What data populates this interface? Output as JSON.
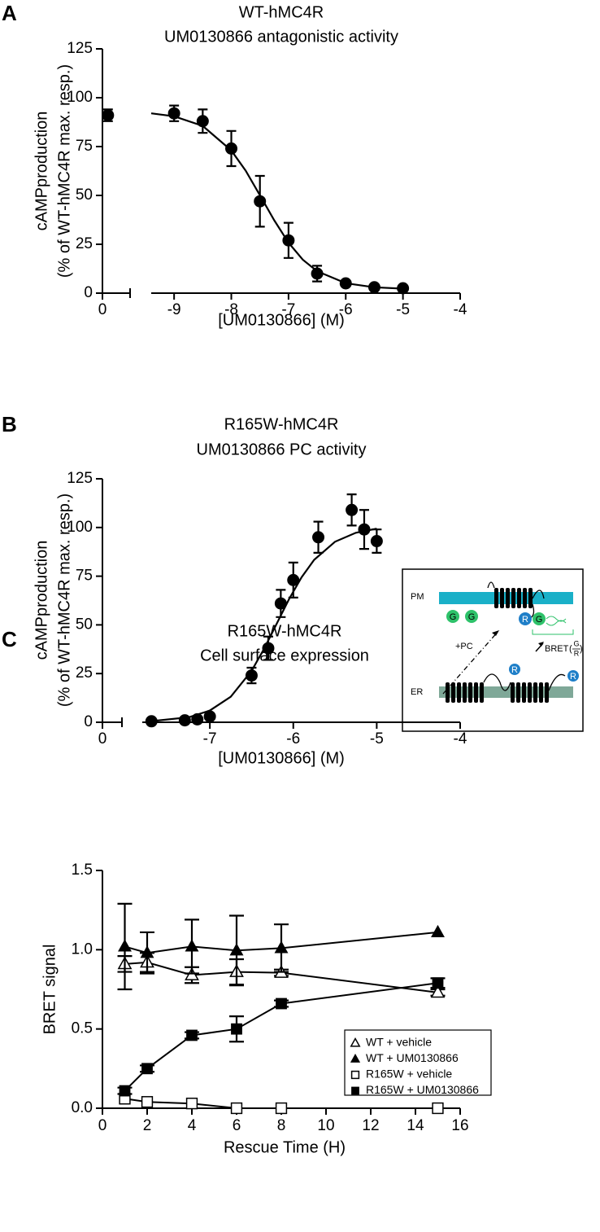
{
  "chart_data": [
    {
      "type": "scatter",
      "panel": "A",
      "title": "WT-hMC4R",
      "subtitle": "UM0130866 antagonistic activity",
      "ylabel": [
        "cAMPproduction",
        "(% of WT-hMC4R max. resp.)"
      ],
      "xlabel": "[UM0130866] (M)",
      "ylim": [
        0,
        125
      ],
      "yticks": [
        0,
        25,
        50,
        75,
        100,
        125
      ],
      "x_segments": [
        {
          "xlim": [
            0,
            0.5
          ],
          "xticks": [
            0
          ]
        },
        {
          "xlim": [
            -9.4,
            -4
          ],
          "xticks": [
            -9,
            -8,
            -7,
            -6,
            -5,
            -4
          ]
        }
      ],
      "control": {
        "x": [
          0.1
        ],
        "values": [
          91
        ],
        "errors": [
          3
        ]
      },
      "series": [
        {
          "color": "#000000",
          "x": [
            -9,
            -8.5,
            -8,
            -7.5,
            -7,
            -6.5,
            -6,
            -5.5,
            -5
          ],
          "values": [
            92,
            88,
            74,
            47,
            27,
            10,
            5,
            3,
            2.5
          ],
          "errors": [
            4,
            6,
            9,
            13,
            9,
            4,
            null,
            null,
            null
          ]
        }
      ],
      "fit": {
        "x": [
          -9.4,
          -9,
          -8.5,
          -8,
          -7.75,
          -7.5,
          -7.25,
          -7,
          -6.75,
          -6.5,
          -6,
          -5.5,
          -5
        ],
        "values": [
          92,
          90.5,
          85.6,
          73,
          62.7,
          50.1,
          37.3,
          25.8,
          17.1,
          11.2,
          5.1,
          3,
          2.3
        ]
      }
    },
    {
      "type": "scatter",
      "panel": "B",
      "title": "R165W-hMC4R",
      "subtitle": "UM0130866 PC activity",
      "ylabel": [
        "cAMPproduction",
        "(% of WT-hMC4R max. resp.)"
      ],
      "xlabel": "[UM0130866] (M)",
      "ylim": [
        0,
        125
      ],
      "yticks": [
        0,
        25,
        50,
        75,
        100,
        125
      ],
      "x_segments": [
        {
          "xlim": [
            0,
            0.35
          ],
          "xticks": [
            0
          ]
        },
        {
          "xlim": [
            -7.81,
            -4
          ],
          "xticks": [
            -7,
            -6,
            -5,
            -4
          ]
        }
      ],
      "series": [
        {
          "color": "#000000",
          "x": [
            -7.7,
            -7.3,
            -7.15,
            -7,
            -6.5,
            -6.3,
            -6.15,
            -6,
            -5.7,
            -5.3,
            -5.15,
            -5
          ],
          "values": [
            0.5,
            1,
            1.5,
            3,
            24,
            38,
            61,
            73,
            95,
            109,
            99,
            93
          ],
          "errors": [
            null,
            null,
            null,
            null,
            4,
            6,
            7,
            9,
            8,
            8,
            10,
            6
          ]
        }
      ],
      "fit": {
        "x": [
          -7.7,
          -7.25,
          -7,
          -6.75,
          -6.5,
          -6.35,
          -6.2,
          -6.05,
          -5.9,
          -5.75,
          -5.5,
          -5.25,
          -5
        ],
        "values": [
          0.6,
          2.6,
          6,
          13.1,
          26.4,
          37.7,
          50.5,
          63.3,
          74.5,
          83.4,
          92.7,
          97.3,
          99.4
        ]
      }
    },
    {
      "type": "line",
      "panel": "C",
      "title": "R165W-hMC4R",
      "subtitle": "Cell surface expression",
      "ylabel": "BRET signal",
      "xlabel": "Rescue Time (H)",
      "xlim": [
        0,
        16
      ],
      "xticks": [
        0,
        2,
        4,
        6,
        8,
        10,
        12,
        14,
        16
      ],
      "ylim": [
        0,
        1.5
      ],
      "yticks": [
        {
          "value": 0,
          "label": "0.0"
        },
        {
          "value": 0.5,
          "label": "0.5"
        },
        {
          "value": 1,
          "label": "1.0"
        },
        {
          "value": 1.5,
          "label": "1.5"
        }
      ],
      "legend": "lower right",
      "series": [
        {
          "name": "WT + vehicle",
          "color": "#000000",
          "marker": "triangle-open",
          "x": [
            1,
            2,
            4,
            6,
            8,
            15
          ],
          "values": [
            0.91,
            0.92,
            0.84,
            0.86,
            0.855,
            0.73
          ],
          "errors": [
            0.05,
            0.06,
            0.05,
            0.08,
            0.02,
            0.02
          ]
        },
        {
          "name": "WT + UM0130866",
          "color": "#000000",
          "marker": "triangle",
          "x": [
            1,
            2,
            4,
            6,
            8,
            15
          ],
          "values": [
            1.02,
            0.98,
            1.02,
            0.995,
            1.01,
            1.11
          ],
          "errors": [
            0.27,
            0.13,
            0.17,
            0.22,
            0.15,
            null
          ]
        },
        {
          "name": "R165W + vehicle",
          "color": "#000000",
          "marker": "square-open",
          "x": [
            1,
            2,
            4,
            6,
            8,
            15
          ],
          "values": [
            0.06,
            0.04,
            0.03,
            0,
            0,
            0
          ],
          "errors": [
            null,
            null,
            null,
            null,
            null,
            null
          ]
        },
        {
          "name": "R165W + UM0130866",
          "color": "#000000",
          "marker": "square",
          "x": [
            1,
            2,
            4,
            6,
            8,
            15
          ],
          "values": [
            0.11,
            0.25,
            0.46,
            0.5,
            0.66,
            0.79
          ],
          "errors": [
            0.02,
            0.02,
            0.02,
            0.08,
            0.02,
            0.03
          ]
        }
      ],
      "inset": {
        "membrane_top": "PM",
        "membrane_bottom": "ER",
        "g_protein": "G",
        "receptor_tag": "R",
        "treatment": "+PC",
        "bret": "BRET",
        "bret_num": "G",
        "bret_den": "R"
      }
    }
  ]
}
